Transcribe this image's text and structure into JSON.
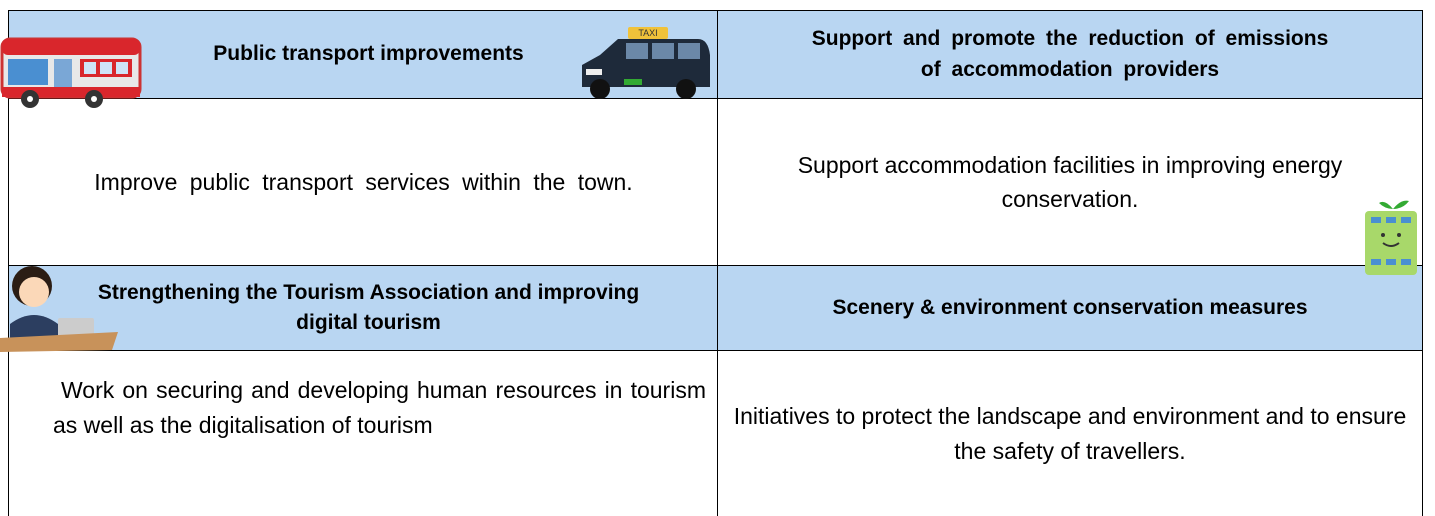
{
  "sections": [
    {
      "heading": "Public transport improvements",
      "body": "Improve public transport services within the town."
    },
    {
      "heading": "Support and promote the reduction of emissions of accommodation providers",
      "body": "Support accommodation facilities in improving energy conservation."
    },
    {
      "heading": "Strengthening the Tourism Association and improving digital tourism",
      "body": "Work on securing and developing human resources in tourism as well as the digitalisation of tourism"
    },
    {
      "heading": "Scenery & environment conservation measures",
      "body": "Initiatives to protect the landscape and environment and to ensure the safety of travellers."
    }
  ],
  "taxi_sign": "TAXI"
}
